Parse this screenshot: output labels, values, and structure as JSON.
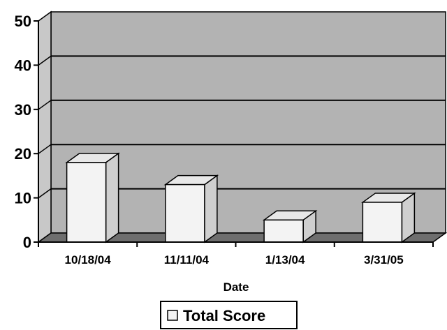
{
  "chart_data": {
    "type": "bar",
    "categories": [
      "10/18/04",
      "11/11/04",
      "1/13/04",
      "3/31/05"
    ],
    "series": [
      {
        "name": "Total Score",
        "values": [
          18,
          13,
          5,
          9
        ]
      }
    ],
    "xlabel": "Date",
    "ylabel": "",
    "ylim": [
      0,
      50
    ],
    "yticks": [
      "0",
      "10",
      "20",
      "30",
      "40",
      "50"
    ],
    "grid": true,
    "three_d": true,
    "legend_position": "bottom",
    "colors": {
      "wall": "#b3b3b3",
      "floor": "#6e6e6e",
      "side_wall": "#c8c8c8",
      "bar_front": "#f3f3f3",
      "bar_top": "#e8e8e8",
      "bar_side": "#cfcfcf"
    }
  }
}
